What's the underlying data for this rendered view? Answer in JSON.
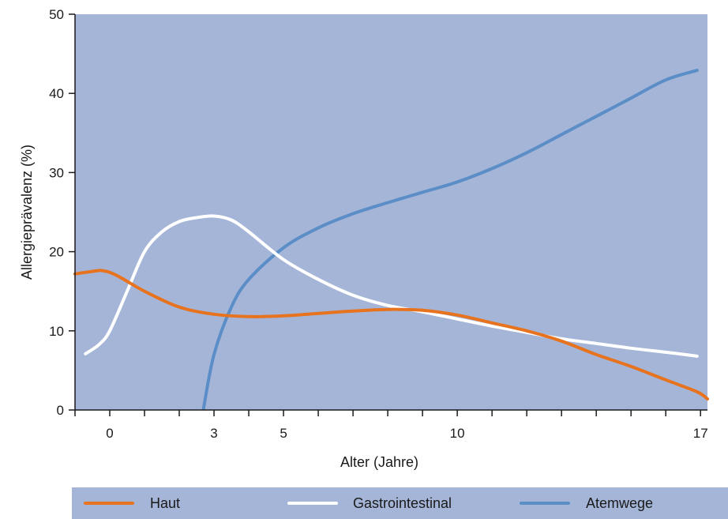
{
  "chart_data": {
    "type": "line",
    "xlabel": "Alter (Jahre)",
    "ylabel": "Allergieprävalenz (%)",
    "xlim": [
      -1,
      17.2
    ],
    "ylim": [
      0,
      50
    ],
    "x_ticks": [
      0,
      3,
      5,
      10,
      17
    ],
    "x_tick_labels": [
      "0",
      "3",
      "5",
      "10",
      "17"
    ],
    "x_minor_ticks": [
      -1,
      0,
      1,
      2,
      3,
      4,
      5,
      6,
      7,
      8,
      9,
      10,
      11,
      12,
      13,
      14,
      15,
      16,
      17
    ],
    "y_ticks": [
      0,
      10,
      20,
      30,
      40,
      50
    ],
    "y_tick_labels": [
      "0",
      "10",
      "20",
      "30",
      "40",
      "50"
    ],
    "grid": false,
    "legend_position": "bottom",
    "plot_background": "#a4b5d8",
    "series": [
      {
        "name": "Haut",
        "color": "#e8731e",
        "points": [
          [
            -1,
            17.2
          ],
          [
            -0.5,
            17.5
          ],
          [
            -0.2,
            17.6
          ],
          [
            0.2,
            17.0
          ],
          [
            1,
            15.0
          ],
          [
            2,
            13.0
          ],
          [
            3,
            12.1
          ],
          [
            4,
            11.8
          ],
          [
            5,
            11.9
          ],
          [
            6,
            12.2
          ],
          [
            7,
            12.5
          ],
          [
            8,
            12.7
          ],
          [
            9,
            12.6
          ],
          [
            10,
            12.0
          ],
          [
            11,
            11.0
          ],
          [
            12,
            10.0
          ],
          [
            13,
            8.7
          ],
          [
            14,
            7.0
          ],
          [
            15,
            5.5
          ],
          [
            16,
            3.8
          ],
          [
            16.9,
            2.3
          ],
          [
            17.2,
            1.4
          ]
        ]
      },
      {
        "name": "Gastrointestinal",
        "color": "#ffffff",
        "points": [
          [
            -0.7,
            7.1
          ],
          [
            -0.3,
            8.3
          ],
          [
            0,
            10.0
          ],
          [
            0.5,
            15.0
          ],
          [
            1,
            20.0
          ],
          [
            1.5,
            22.5
          ],
          [
            2,
            23.8
          ],
          [
            2.5,
            24.3
          ],
          [
            3,
            24.5
          ],
          [
            3.5,
            24.0
          ],
          [
            4,
            22.5
          ],
          [
            5,
            19.0
          ],
          [
            6,
            16.5
          ],
          [
            7,
            14.5
          ],
          [
            8,
            13.2
          ],
          [
            9,
            12.4
          ],
          [
            10,
            11.5
          ],
          [
            11,
            10.6
          ],
          [
            12,
            9.8
          ],
          [
            13,
            9.0
          ],
          [
            14,
            8.4
          ],
          [
            15,
            7.8
          ],
          [
            16,
            7.3
          ],
          [
            16.9,
            6.8
          ]
        ]
      },
      {
        "name": "Atemwege",
        "color": "#5b8dc7",
        "points": [
          [
            2.7,
            0.2
          ],
          [
            3,
            7.0
          ],
          [
            3.5,
            13.0
          ],
          [
            4,
            16.5
          ],
          [
            5,
            20.5
          ],
          [
            6,
            23.0
          ],
          [
            7,
            24.8
          ],
          [
            8,
            26.2
          ],
          [
            9,
            27.5
          ],
          [
            10,
            28.8
          ],
          [
            11,
            30.5
          ],
          [
            12,
            32.5
          ],
          [
            13,
            34.8
          ],
          [
            14,
            37.1
          ],
          [
            15,
            39.4
          ],
          [
            16,
            41.7
          ],
          [
            16.9,
            42.9
          ]
        ]
      }
    ]
  }
}
